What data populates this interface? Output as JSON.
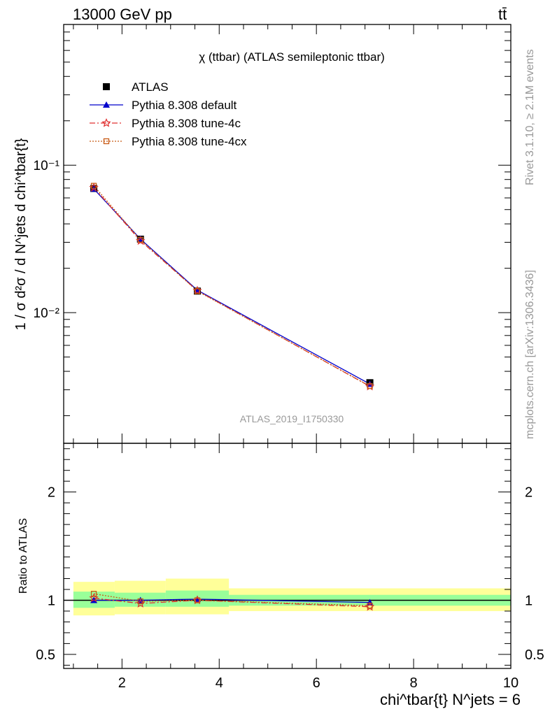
{
  "header": {
    "energy_label": "13000 GeV pp",
    "process_label": "tt̄"
  },
  "side": {
    "rivet": "Rivet 3.1.10, ≥ 2.1M events",
    "mcplots": "mcplots.cern.ch [arXiv:1306.3436]"
  },
  "chart_data": [
    {
      "type": "line",
      "title": "χ (ttbar) (ATLAS semileptonic ttbar)",
      "analysis_label": "ATLAS_2019_I1750330",
      "ylabel": "1 / σ d²σ / d N^jets d chi^tbar{t}",
      "yscale": "log",
      "xlim": [
        0.8,
        10.0
      ],
      "ylim": [
        0.0013,
        0.9
      ],
      "yticks": [
        {
          "value": 0.1,
          "label": "10⁻¹"
        },
        {
          "value": 0.01,
          "label": "10⁻²"
        }
      ],
      "x": [
        1.42,
        2.38,
        3.55,
        7.1
      ],
      "series": [
        {
          "name": "ATLAS",
          "marker": "square",
          "color": "#000000",
          "values": [
            0.0695,
            0.0315,
            0.014,
            0.00335
          ]
        },
        {
          "name": "Pythia 8.308 default",
          "marker": "triangle",
          "line": "solid",
          "color": "#0000cc",
          "values": [
            0.069,
            0.0316,
            0.0142,
            0.00328
          ]
        },
        {
          "name": "Pythia 8.308 tune-4c",
          "marker": "star",
          "line": "dashdot",
          "color": "#e03030",
          "values": [
            0.0705,
            0.0307,
            0.0141,
            0.00316
          ]
        },
        {
          "name": "Pythia 8.308 tune-4cx",
          "marker": "open-square",
          "line": "dotted",
          "color": "#c85a14",
          "values": [
            0.0725,
            0.0312,
            0.014,
            0.00318
          ]
        }
      ]
    },
    {
      "type": "line",
      "ylabel": "Ratio to ATLAS",
      "xlabel": "chi^tbar{t} N^jets = 6",
      "xlim": [
        0.8,
        10.0
      ],
      "ylim": [
        0.37,
        2.45
      ],
      "xticks": [
        2,
        4,
        6,
        8,
        10
      ],
      "yticks": [
        {
          "value": 0.5,
          "label": "0.5"
        },
        {
          "value": 1,
          "label": "1"
        },
        {
          "value": 2,
          "label": "2"
        }
      ],
      "bins": [
        {
          "lo": 1.0,
          "hi": 1.85,
          "inner": [
            0.93,
            1.08
          ],
          "outer": [
            0.86,
            1.17
          ]
        },
        {
          "lo": 1.85,
          "hi": 2.9,
          "inner": [
            0.94,
            1.07
          ],
          "outer": [
            0.87,
            1.18
          ]
        },
        {
          "lo": 2.9,
          "hi": 4.2,
          "inner": [
            0.94,
            1.09
          ],
          "outer": [
            0.87,
            1.2
          ]
        },
        {
          "lo": 4.2,
          "hi": 10.0,
          "inner": [
            0.95,
            1.05
          ],
          "outer": [
            0.9,
            1.11
          ]
        }
      ],
      "x": [
        1.42,
        2.38,
        3.55,
        7.1
      ],
      "series": [
        {
          "name": "Pythia 8.308 default",
          "marker": "triangle",
          "line": "solid",
          "color": "#0000cc",
          "values": [
            1.0,
            1.0,
            1.01,
            0.98
          ]
        },
        {
          "name": "Pythia 8.308 tune-4c",
          "marker": "star",
          "line": "dashdot",
          "color": "#e03030",
          "values": [
            1.02,
            0.97,
            1.0,
            0.94
          ]
        },
        {
          "name": "Pythia 8.308 tune-4cx",
          "marker": "open-square",
          "line": "dotted",
          "color": "#c85a14",
          "values": [
            1.06,
            0.99,
            1.0,
            0.95
          ]
        }
      ]
    }
  ]
}
